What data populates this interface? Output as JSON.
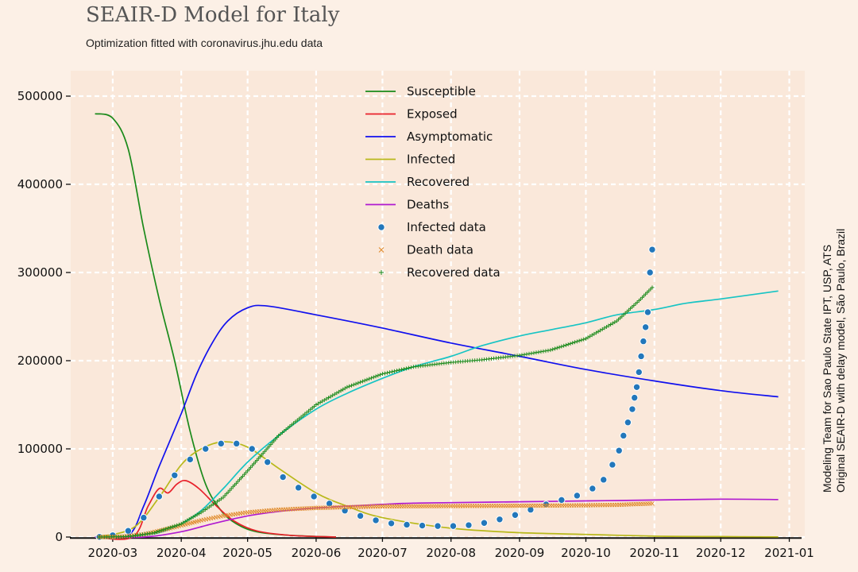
{
  "title": "SEAIR-D Model for Italy",
  "subtitle": "Optimization fitted with coronavirus.jhu.edu data",
  "side_note": [
    "Modeling Team for Sao Paulo State IPT, USP, ATS",
    "Original SEAIR-D with delay model, São Paulo, Brazil"
  ],
  "chart_data": {
    "type": "line",
    "title": "SEAIR-D Model for Italy",
    "subtitle": "Optimization fitted with coronavirus.jhu.edu data",
    "xlabel": "",
    "ylabel": "",
    "x_ticks": [
      "2020-03",
      "2020-04",
      "2020-05",
      "2020-06",
      "2020-07",
      "2020-08",
      "2020-09",
      "2020-10",
      "2020-11",
      "2020-12",
      "2021-01"
    ],
    "y_ticks": [
      "0",
      "100000",
      "200000",
      "300000",
      "400000",
      "500000"
    ],
    "xlim": [
      "2020-02-11",
      "2021-01-08"
    ],
    "ylim": [
      0,
      500000
    ],
    "grid": true,
    "legend_position": "top-center",
    "series": [
      {
        "name": "Susceptible",
        "kind": "line",
        "color": "#1a8a1a",
        "points": [
          [
            "2020-02-22",
            480000
          ],
          [
            "2020-03-01",
            475000
          ],
          [
            "2020-03-08",
            440000
          ],
          [
            "2020-03-15",
            350000
          ],
          [
            "2020-03-22",
            270000
          ],
          [
            "2020-03-29",
            200000
          ],
          [
            "2020-04-05",
            120000
          ],
          [
            "2020-04-12",
            60000
          ],
          [
            "2020-04-19",
            30000
          ],
          [
            "2020-04-26",
            15000
          ],
          [
            "2020-05-05",
            6000
          ],
          [
            "2020-05-20",
            2000
          ],
          [
            "2020-06-10",
            0
          ]
        ]
      },
      {
        "name": "Exposed",
        "kind": "line",
        "color": "#e8202a",
        "points": [
          [
            "2020-02-22",
            0
          ],
          [
            "2020-03-10",
            0
          ],
          [
            "2020-03-17",
            35000
          ],
          [
            "2020-03-22",
            55000
          ],
          [
            "2020-03-26",
            50000
          ],
          [
            "2020-03-30",
            60000
          ],
          [
            "2020-04-03",
            64000
          ],
          [
            "2020-04-09",
            55000
          ],
          [
            "2020-04-17",
            35000
          ],
          [
            "2020-04-25",
            18000
          ],
          [
            "2020-05-05",
            7000
          ],
          [
            "2020-05-20",
            2000
          ],
          [
            "2020-06-10",
            0
          ]
        ]
      },
      {
        "name": "Asymptomatic",
        "kind": "line",
        "color": "#1010ee",
        "points": [
          [
            "2020-02-22",
            0
          ],
          [
            "2020-03-08",
            2000
          ],
          [
            "2020-03-15",
            35000
          ],
          [
            "2020-03-22",
            80000
          ],
          [
            "2020-04-01",
            140000
          ],
          [
            "2020-04-08",
            185000
          ],
          [
            "2020-04-15",
            220000
          ],
          [
            "2020-04-22",
            245000
          ],
          [
            "2020-05-01",
            260000
          ],
          [
            "2020-05-10",
            262000
          ],
          [
            "2020-06-01",
            252000
          ],
          [
            "2020-07-01",
            237000
          ],
          [
            "2020-08-01",
            220000
          ],
          [
            "2020-09-01",
            205000
          ],
          [
            "2020-10-01",
            190000
          ],
          [
            "2020-11-01",
            177000
          ],
          [
            "2020-12-01",
            166000
          ],
          [
            "2020-12-27",
            159000
          ]
        ]
      },
      {
        "name": "Infected",
        "kind": "line",
        "color": "#b8b81a",
        "points": [
          [
            "2020-02-22",
            0
          ],
          [
            "2020-03-10",
            10000
          ],
          [
            "2020-03-22",
            45000
          ],
          [
            "2020-04-01",
            82000
          ],
          [
            "2020-04-10",
            100000
          ],
          [
            "2020-04-20",
            108000
          ],
          [
            "2020-05-01",
            102000
          ],
          [
            "2020-05-15",
            78000
          ],
          [
            "2020-06-01",
            50000
          ],
          [
            "2020-06-15",
            35000
          ],
          [
            "2020-07-01",
            22000
          ],
          [
            "2020-08-01",
            10000
          ],
          [
            "2020-09-01",
            5000
          ],
          [
            "2020-10-01",
            3000
          ],
          [
            "2020-11-01",
            1000
          ],
          [
            "2020-12-01",
            500
          ],
          [
            "2020-12-27",
            200
          ]
        ]
      },
      {
        "name": "Recovered",
        "kind": "line",
        "color": "#17c4c4",
        "points": [
          [
            "2020-02-22",
            0
          ],
          [
            "2020-03-10",
            1000
          ],
          [
            "2020-03-22",
            5000
          ],
          [
            "2020-04-01",
            15000
          ],
          [
            "2020-04-10",
            30000
          ],
          [
            "2020-04-20",
            55000
          ],
          [
            "2020-05-01",
            85000
          ],
          [
            "2020-05-15",
            115000
          ],
          [
            "2020-06-01",
            145000
          ],
          [
            "2020-06-15",
            163000
          ],
          [
            "2020-07-01",
            180000
          ],
          [
            "2020-07-15",
            193000
          ],
          [
            "2020-08-01",
            205000
          ],
          [
            "2020-08-15",
            217000
          ],
          [
            "2020-09-01",
            228000
          ],
          [
            "2020-09-15",
            235000
          ],
          [
            "2020-10-01",
            243000
          ],
          [
            "2020-10-15",
            252000
          ],
          [
            "2020-11-01",
            258000
          ],
          [
            "2020-11-15",
            265000
          ],
          [
            "2020-12-01",
            270000
          ],
          [
            "2020-12-27",
            279000
          ]
        ]
      },
      {
        "name": "Deaths",
        "kind": "line",
        "color": "#b01ad0",
        "points": [
          [
            "2020-02-22",
            0
          ],
          [
            "2020-03-15",
            0
          ],
          [
            "2020-04-01",
            6000
          ],
          [
            "2020-04-15",
            15000
          ],
          [
            "2020-05-01",
            24000
          ],
          [
            "2020-05-15",
            29000
          ],
          [
            "2020-06-01",
            33000
          ],
          [
            "2020-06-15",
            35000
          ],
          [
            "2020-07-01",
            37000
          ],
          [
            "2020-07-15",
            38500
          ],
          [
            "2020-08-01",
            39000
          ],
          [
            "2020-09-01",
            40000
          ],
          [
            "2020-10-01",
            41000
          ],
          [
            "2020-11-01",
            42000
          ],
          [
            "2020-12-01",
            43000
          ],
          [
            "2020-12-27",
            42500
          ]
        ]
      },
      {
        "name": "Infected data",
        "kind": "dots",
        "color": "#2277bb",
        "points": [
          [
            "2020-02-24",
            200
          ],
          [
            "2020-03-01",
            2000
          ],
          [
            "2020-03-08",
            7000
          ],
          [
            "2020-03-15",
            22000
          ],
          [
            "2020-03-22",
            46000
          ],
          [
            "2020-03-29",
            70000
          ],
          [
            "2020-04-05",
            88000
          ],
          [
            "2020-04-12",
            100000
          ],
          [
            "2020-04-19",
            106000
          ],
          [
            "2020-04-26",
            106000
          ],
          [
            "2020-05-03",
            100000
          ],
          [
            "2020-05-10",
            85000
          ],
          [
            "2020-05-17",
            68000
          ],
          [
            "2020-05-24",
            56000
          ],
          [
            "2020-05-31",
            46000
          ],
          [
            "2020-06-07",
            38000
          ],
          [
            "2020-06-14",
            30000
          ],
          [
            "2020-06-21",
            24000
          ],
          [
            "2020-06-28",
            19000
          ],
          [
            "2020-07-05",
            15500
          ],
          [
            "2020-07-12",
            14000
          ],
          [
            "2020-07-19",
            13000
          ],
          [
            "2020-07-26",
            12500
          ],
          [
            "2020-08-02",
            12500
          ],
          [
            "2020-08-09",
            13500
          ],
          [
            "2020-08-16",
            16000
          ],
          [
            "2020-08-23",
            20000
          ],
          [
            "2020-08-30",
            25000
          ],
          [
            "2020-09-06",
            31000
          ],
          [
            "2020-09-13",
            37000
          ],
          [
            "2020-09-20",
            42000
          ],
          [
            "2020-09-27",
            47000
          ],
          [
            "2020-10-04",
            55000
          ],
          [
            "2020-10-09",
            65000
          ],
          [
            "2020-10-13",
            82000
          ],
          [
            "2020-10-16",
            98000
          ],
          [
            "2020-10-18",
            115000
          ],
          [
            "2020-10-20",
            130000
          ],
          [
            "2020-10-22",
            145000
          ],
          [
            "2020-10-23",
            158000
          ],
          [
            "2020-10-24",
            170000
          ],
          [
            "2020-10-25",
            187000
          ],
          [
            "2020-10-26",
            205000
          ],
          [
            "2020-10-27",
            222000
          ],
          [
            "2020-10-28",
            238000
          ],
          [
            "2020-10-29",
            255000
          ],
          [
            "2020-10-30",
            300000
          ],
          [
            "2020-10-31",
            326000
          ]
        ]
      },
      {
        "name": "Death data",
        "kind": "x",
        "color": "#e08a2a",
        "points": [
          [
            "2020-02-24",
            0
          ],
          [
            "2020-03-05",
            500
          ],
          [
            "2020-03-15",
            3000
          ],
          [
            "2020-03-22",
            7000
          ],
          [
            "2020-04-01",
            13000
          ],
          [
            "2020-04-10",
            19000
          ],
          [
            "2020-04-20",
            24000
          ],
          [
            "2020-05-01",
            28000
          ],
          [
            "2020-05-15",
            31000
          ],
          [
            "2020-06-01",
            33000
          ],
          [
            "2020-07-01",
            34800
          ],
          [
            "2020-08-01",
            35200
          ],
          [
            "2020-09-01",
            35500
          ],
          [
            "2020-10-01",
            36000
          ],
          [
            "2020-10-15",
            36500
          ],
          [
            "2020-10-31",
            38000
          ]
        ]
      },
      {
        "name": "Recovered data",
        "kind": "plus",
        "color": "#1a8a1a",
        "points": [
          [
            "2020-02-24",
            0
          ],
          [
            "2020-03-08",
            500
          ],
          [
            "2020-03-20",
            5000
          ],
          [
            "2020-04-01",
            15000
          ],
          [
            "2020-04-10",
            28000
          ],
          [
            "2020-04-20",
            45000
          ],
          [
            "2020-05-01",
            75000
          ],
          [
            "2020-05-15",
            115000
          ],
          [
            "2020-06-01",
            150000
          ],
          [
            "2020-06-15",
            170000
          ],
          [
            "2020-07-01",
            185000
          ],
          [
            "2020-07-15",
            193000
          ],
          [
            "2020-08-01",
            198000
          ],
          [
            "2020-08-15",
            201000
          ],
          [
            "2020-09-01",
            206000
          ],
          [
            "2020-09-15",
            212000
          ],
          [
            "2020-10-01",
            225000
          ],
          [
            "2020-10-15",
            245000
          ],
          [
            "2020-10-25",
            268000
          ],
          [
            "2020-10-31",
            283000
          ]
        ]
      }
    ]
  }
}
